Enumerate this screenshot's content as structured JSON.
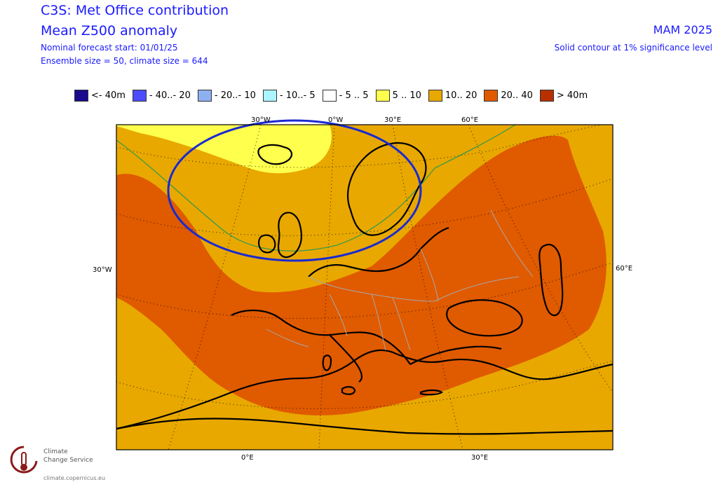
{
  "header": {
    "title": "C3S: Met Office contribution",
    "variable": "Mean Z500 anomaly",
    "forecast_start": "Nominal forecast start: 01/01/25",
    "ensemble": "Ensemble size = 50, climate size = 644",
    "season": "MAM 2025",
    "significance_note": "Solid contour at 1% significance level"
  },
  "legend": [
    {
      "label": "<- 40m",
      "color": "#1a0a8c"
    },
    {
      "label": "- 40..- 20",
      "color": "#4d4dff"
    },
    {
      "label": "- 20..- 10",
      "color": "#8fb0f0"
    },
    {
      "label": "- 10..- 5",
      "color": "#aaf5ff"
    },
    {
      "label": "- 5 .. 5",
      "color": "#ffffff"
    },
    {
      "label": "5 .. 10",
      "color": "#ffff4d"
    },
    {
      "label": "10.. 20",
      "color": "#e8a800"
    },
    {
      "label": "20.. 40",
      "color": "#e05a00"
    },
    {
      "label": "> 40m",
      "color": "#b83000"
    }
  ],
  "map": {
    "lon_labels_top": [
      "30°W",
      "0°W",
      "30°E",
      "60°E"
    ],
    "lon_labels_bottom": [
      "0°E",
      "30°E"
    ],
    "lat_label_left": "30°W",
    "lat_label_right": "60°E"
  },
  "logo": {
    "line1": "Climate",
    "line2": "Change Service",
    "url": "climate.copernicus.eu"
  }
}
